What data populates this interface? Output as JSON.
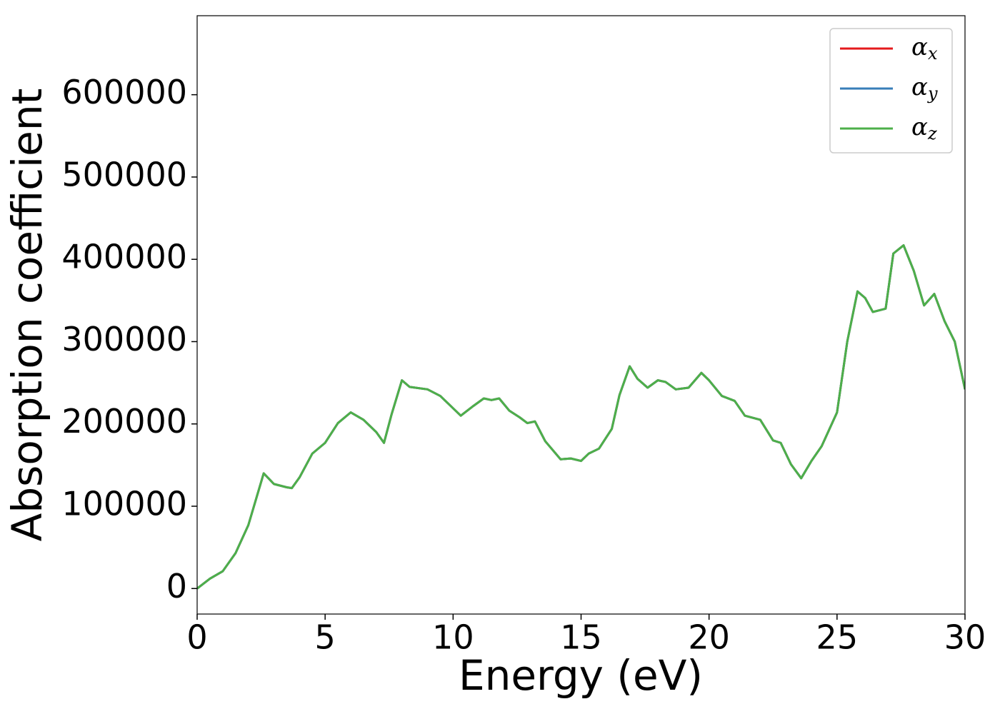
{
  "chart_data": {
    "type": "line",
    "xlabel": "Energy (eV)",
    "ylabel": "Absorption coefficient",
    "x": [
      0,
      0.5,
      1,
      1.5,
      2,
      2.6,
      3,
      3.5,
      3.7,
      4,
      4.5,
      5,
      5.5,
      6,
      6.5,
      7,
      7.3,
      7.6,
      8,
      8.3,
      9,
      9.5,
      10,
      10.3,
      10.8,
      11.2,
      11.5,
      11.8,
      12.2,
      12.6,
      12.9,
      13.2,
      13.6,
      14.2,
      14.6,
      15,
      15.3,
      15.7,
      16.2,
      16.5,
      16.9,
      17.2,
      17.6,
      18,
      18.3,
      18.7,
      19.2,
      19.7,
      20,
      20.5,
      21,
      21.4,
      22,
      22.5,
      22.8,
      23.2,
      23.6,
      24,
      24.4,
      25,
      25.4,
      25.8,
      26.1,
      26.4,
      26.9,
      27.2,
      27.6,
      28,
      28.4,
      28.8,
      29.2,
      29.6,
      30
    ],
    "series": [
      {
        "name": "αx",
        "color": "#e41a1c",
        "values": [
          0,
          12000,
          21000,
          43000,
          77000,
          140000,
          127000,
          123000,
          122000,
          135000,
          164000,
          177000,
          201000,
          214000,
          205000,
          190000,
          177000,
          212000,
          253000,
          245000,
          242000,
          234000,
          219000,
          210000,
          222000,
          231000,
          229000,
          231000,
          216000,
          208000,
          201000,
          203000,
          179000,
          157000,
          158000,
          155000,
          164000,
          170000,
          194000,
          235000,
          270000,
          255000,
          244000,
          253000,
          251000,
          242000,
          244000,
          262000,
          253000,
          234000,
          228000,
          210000,
          205000,
          180000,
          177000,
          151000,
          134000,
          155000,
          173000,
          214000,
          300000,
          361000,
          353000,
          336000,
          340000,
          407000,
          417000,
          386000,
          344000,
          358000,
          325000,
          300000,
          242000
        ]
      },
      {
        "name": "αy",
        "color": "#377eb8",
        "values": [
          0,
          12000,
          21000,
          43000,
          77000,
          140000,
          127000,
          123000,
          122000,
          135000,
          164000,
          177000,
          201000,
          214000,
          205000,
          190000,
          177000,
          212000,
          253000,
          245000,
          242000,
          234000,
          219000,
          210000,
          222000,
          231000,
          229000,
          231000,
          216000,
          208000,
          201000,
          203000,
          179000,
          157000,
          158000,
          155000,
          164000,
          170000,
          194000,
          235000,
          270000,
          255000,
          244000,
          253000,
          251000,
          242000,
          244000,
          262000,
          253000,
          234000,
          228000,
          210000,
          205000,
          180000,
          177000,
          151000,
          134000,
          155000,
          173000,
          214000,
          300000,
          361000,
          353000,
          336000,
          340000,
          407000,
          417000,
          386000,
          344000,
          358000,
          325000,
          300000,
          242000
        ]
      },
      {
        "name": "αz",
        "color": "#4daf4a",
        "values": [
          0,
          12000,
          21000,
          43000,
          77000,
          140000,
          127000,
          123000,
          122000,
          135000,
          164000,
          177000,
          201000,
          214000,
          205000,
          190000,
          177000,
          212000,
          253000,
          245000,
          242000,
          234000,
          219000,
          210000,
          222000,
          231000,
          229000,
          231000,
          216000,
          208000,
          201000,
          203000,
          179000,
          157000,
          158000,
          155000,
          164000,
          170000,
          194000,
          235000,
          270000,
          255000,
          244000,
          253000,
          251000,
          242000,
          244000,
          262000,
          253000,
          234000,
          228000,
          210000,
          205000,
          180000,
          177000,
          151000,
          134000,
          155000,
          173000,
          214000,
          300000,
          361000,
          353000,
          336000,
          340000,
          407000,
          417000,
          386000,
          344000,
          358000,
          325000,
          300000,
          242000
        ]
      }
    ],
    "xlim": [
      0,
      30
    ],
    "xticks": [
      0,
      5,
      10,
      15,
      20,
      25,
      30
    ],
    "ylim": [
      -31000,
      696000
    ],
    "yticks": [
      0,
      100000,
      200000,
      300000,
      400000,
      500000,
      600000
    ],
    "legend": "upper right",
    "grid": false
  }
}
